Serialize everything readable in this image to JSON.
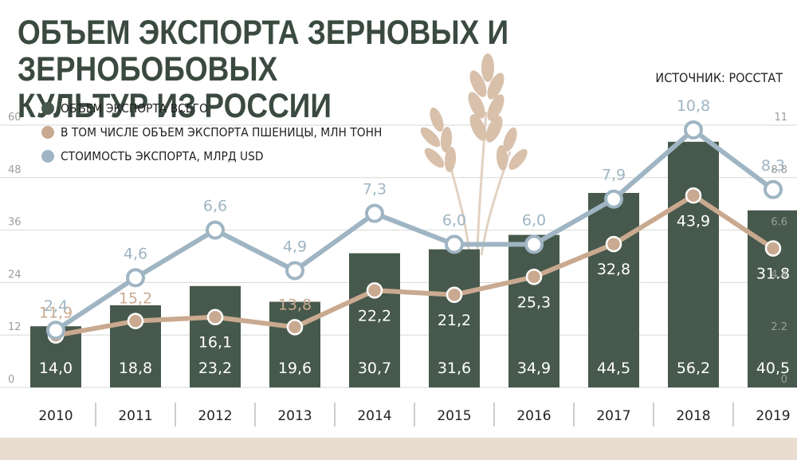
{
  "title_line1": "ОБЪЕМ ЭКСПОРТА ЗЕРНОВЫХ И ЗЕРНОБОБОВЫХ",
  "title_line2": "КУЛЬТУР ИЗ РОССИИ",
  "source": "ИСТОЧНИК: РОССТАТ",
  "colors": {
    "bar": "#47594c",
    "wheat": "#c9a98f",
    "value": "#9fb5c3",
    "title": "#3b4a40",
    "band": "#e9ddd2"
  },
  "icons": {
    "decoration": "wheat-ears-icon"
  },
  "chart_data": {
    "type": "bar",
    "categories": [
      "2010",
      "2011",
      "2012",
      "2013",
      "2014",
      "2015",
      "2016",
      "2017",
      "2018",
      "2019"
    ],
    "series": [
      {
        "name": "ОБЪЕМ ЭКСПОРТА ВСЕГО",
        "type": "bar",
        "axis": "left",
        "values": [
          14.0,
          18.8,
          23.2,
          19.6,
          30.7,
          31.6,
          34.9,
          44.5,
          56.2,
          40.5
        ],
        "labels": [
          "14,0",
          "18,8",
          "23,2",
          "19,6",
          "30,7",
          "31,6",
          "34,9",
          "44,5",
          "56,2",
          "40,5"
        ]
      },
      {
        "name": "В ТОМ ЧИСЛЕ ОБЪЕМ ЭКСПОРТА ПШЕНИЦЫ, МЛН ТОНН",
        "type": "line",
        "axis": "left",
        "values": [
          11.9,
          15.2,
          16.1,
          13.8,
          22.2,
          21.2,
          25.3,
          32.8,
          43.9,
          31.8
        ],
        "labels": [
          "11,9",
          "15,2",
          "16,1",
          "13,8",
          "22,2",
          "21,2",
          "25,3",
          "32,8",
          "43,9",
          "31.8"
        ]
      },
      {
        "name": "СТОИМОСТЬ ЭКСПОРТА, МЛРД USD",
        "type": "line",
        "axis": "right",
        "values": [
          2.4,
          4.6,
          6.6,
          4.9,
          7.3,
          6.0,
          6.0,
          7.9,
          10.8,
          8.3
        ],
        "labels": [
          "2,4",
          "4,6",
          "6,6",
          "4,9",
          "7,3",
          "6,0",
          "6,0",
          "7,9",
          "10,8",
          "8,3"
        ]
      }
    ],
    "y_left": {
      "min": 0,
      "max": 60,
      "ticks": [
        "0",
        "12",
        "24",
        "36",
        "48",
        "60"
      ]
    },
    "y_right": {
      "min": 0,
      "max": 11,
      "ticks": [
        "0",
        "2.2",
        "4.4",
        "6.6",
        "8.8",
        "11"
      ]
    },
    "grid": true,
    "legend": "top-left"
  }
}
